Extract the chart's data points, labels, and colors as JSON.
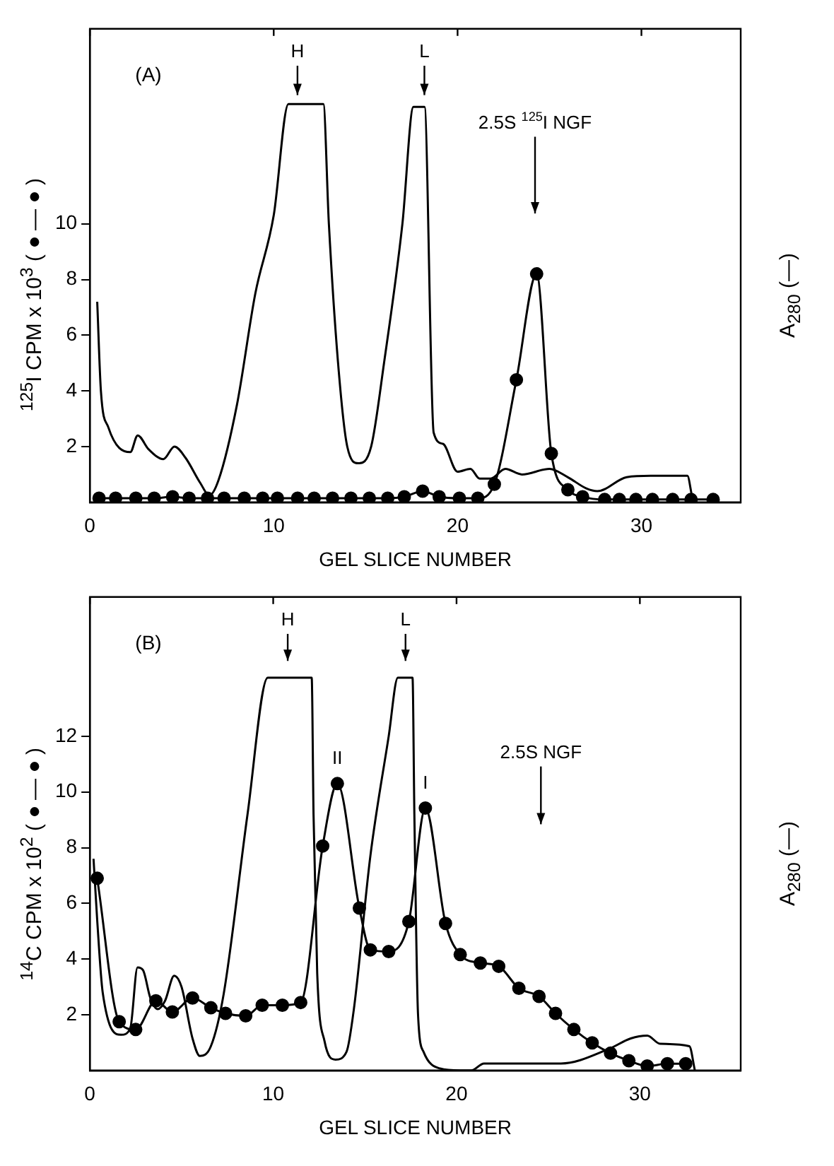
{
  "chart_data": [
    {
      "type": "line",
      "xlabel": "GEL SLICE NUMBER",
      "ylabel": "$^{125}$I CPM x 10$^{3}$ (●—●)",
      "y2label": "A$_{280}$ (—)",
      "xlim": [
        0,
        35.4
      ],
      "ylim": [
        0,
        17
      ],
      "xticks": [
        0,
        10,
        20,
        30
      ],
      "yticks": [
        2,
        4,
        6,
        8,
        10
      ],
      "grid": false,
      "legend": false,
      "annotations": [
        "(A)",
        "H",
        "L",
        "2.5S $^{125}$I NGF"
      ],
      "series": [
        {
          "color": "#000000",
          "marker": "circle",
          "x": [
            0.5,
            1.4,
            2.5,
            3.5,
            4.5,
            5.4,
            6.4,
            7.3,
            8.4,
            9.4,
            10.2,
            11.3,
            12.2,
            13.2,
            14.2,
            15.2,
            16.2,
            17.1,
            18.1,
            19.0,
            20.1,
            21.1,
            22.0,
            23.2,
            24.3,
            25.1,
            26.0,
            26.8,
            28.0,
            28.8,
            29.7,
            30.6,
            31.7,
            32.7,
            33.9
          ],
          "values": [
            0.15,
            0.15,
            0.15,
            0.15,
            0.2,
            0.15,
            0.15,
            0.15,
            0.15,
            0.15,
            0.15,
            0.15,
            0.15,
            0.15,
            0.15,
            0.15,
            0.15,
            0.2,
            0.4,
            0.2,
            0.15,
            0.15,
            0.65,
            4.4,
            8.2,
            1.75,
            0.45,
            0.2,
            0.1,
            0.1,
            0.1,
            0.1,
            0.1,
            0.1,
            0.1
          ]
        },
        {
          "color": "#000000",
          "marker": "none",
          "x": [
            0.4,
            0.6,
            1.0,
            2.2,
            2.6,
            3.2,
            4.0,
            4.6,
            5.2,
            6.0,
            6.5,
            7.0,
            8.0,
            9.0,
            10.0,
            10.8,
            12.7,
            13.0,
            13.5,
            14.0,
            14.6,
            15.3,
            16.0,
            17.0,
            17.6,
            18.2,
            18.7,
            19.2,
            20.0,
            20.7,
            21.2,
            21.8,
            22.6,
            23.5,
            25.0,
            26.0,
            27.0,
            27.6,
            29.2,
            30.5,
            32.5,
            32.8,
            33.0
          ],
          "values": [
            7.2,
            4.0,
            2.7,
            1.8,
            2.4,
            1.9,
            1.55,
            2.0,
            1.6,
            0.7,
            0.25,
            0.8,
            3.5,
            7.5,
            10.3,
            14.3,
            14.3,
            10,
            5,
            2,
            1.4,
            2,
            5,
            10,
            14.2,
            14.2,
            2.5,
            2.1,
            1.1,
            1.2,
            0.85,
            0.85,
            1.2,
            1.0,
            1.2,
            0.9,
            0.5,
            0.4,
            0.9,
            0.95,
            0.95,
            0.1,
            0
          ]
        }
      ]
    },
    {
      "type": "line",
      "xlabel": "GEL SLICE NUMBER",
      "ylabel": "$^{14}$C CPM x 10$^{2}$ (●—●)",
      "y2label": "A$_{280}$ (—)",
      "xlim": [
        0,
        35.5
      ],
      "ylim": [
        0,
        17
      ],
      "xticks": [
        0,
        10,
        20,
        30
      ],
      "yticks": [
        2,
        4,
        6,
        8,
        10,
        12
      ],
      "grid": false,
      "legend": false,
      "annotations": [
        "(B)",
        "H",
        "L",
        {
          "text": "II",
          "x": 13.5,
          "y": 10.3
        },
        {
          "text": "I",
          "x": 18.3,
          "y": 9.42
        },
        "2.5S NGF"
      ],
      "series": [
        {
          "color": "#000000",
          "marker": "circle",
          "x": [
            0.4,
            1.6,
            2.5,
            3.6,
            4.5,
            5.6,
            6.6,
            7.4,
            8.5,
            9.4,
            10.5,
            11.5,
            12.7,
            13.5,
            14.7,
            15.3,
            16.3,
            17.4,
            18.3,
            19.4,
            20.2,
            21.3,
            22.3,
            23.4,
            24.5,
            25.4,
            26.4,
            27.4,
            28.4,
            29.4,
            30.4,
            31.5,
            32.5
          ],
          "values": [
            6.9,
            1.75,
            1.47,
            2.5,
            2.1,
            2.6,
            2.25,
            2.05,
            1.96,
            2.34,
            2.34,
            2.44,
            8.06,
            10.3,
            5.83,
            4.33,
            4.27,
            5.35,
            9.42,
            5.28,
            4.16,
            3.86,
            3.74,
            2.95,
            2.66,
            2.05,
            1.47,
            0.99,
            0.62,
            0.35,
            0.16,
            0.24,
            0.24
          ]
        },
        {
          "color": "#000000",
          "marker": "none",
          "x": [
            0.2,
            0.4,
            0.7,
            1.7,
            2.2,
            2.6,
            2.9,
            3.3,
            3.7,
            4.1,
            4.6,
            5.0,
            5.6,
            6.0,
            6.6,
            7.3,
            8.6,
            9.7,
            12.1,
            12.2,
            12.4,
            12.8,
            13.4,
            14.0,
            14.4,
            15.3,
            16.3,
            16.8,
            17.6,
            17.7,
            17.9,
            18.2,
            19.1,
            20.2,
            20.8,
            21.5,
            25.7,
            28.3,
            29.5,
            30.4,
            31.1,
            32.7,
            33.0
          ],
          "values": [
            7.6,
            5.4,
            2.8,
            1.28,
            1.5,
            3.7,
            3.6,
            2.6,
            2.2,
            2.5,
            3.4,
            3.0,
            1.15,
            0.52,
            0.87,
            2.75,
            9.2,
            14.1,
            14.1,
            9.2,
            3.5,
            1.05,
            0.39,
            0.67,
            2.2,
            7.7,
            12.0,
            14.1,
            14.1,
            9.2,
            2.0,
            0.67,
            0.07,
            0,
            0,
            0.25,
            0.25,
            0.77,
            1.15,
            1.25,
            0.96,
            0.87,
            0
          ]
        }
      ]
    }
  ]
}
